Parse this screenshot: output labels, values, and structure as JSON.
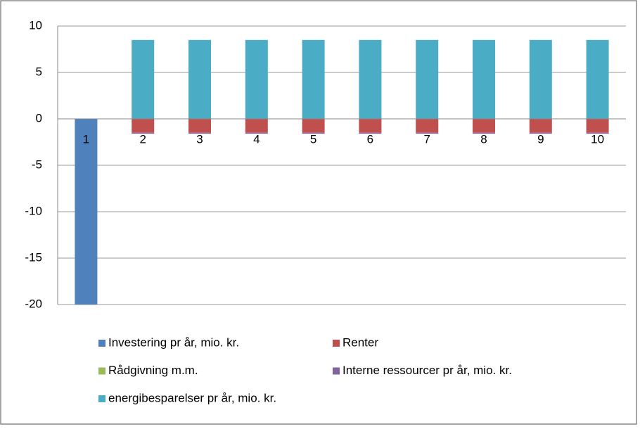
{
  "chart_data": {
    "type": "stacked_bar",
    "categories": [
      "1",
      "2",
      "3",
      "4",
      "5",
      "6",
      "7",
      "8",
      "9",
      "10"
    ],
    "series": [
      {
        "name": "Investering pr år, mio. kr.",
        "color": "#4f81bd",
        "values": [
          -20,
          0,
          0,
          0,
          0,
          0,
          0,
          0,
          0,
          0
        ]
      },
      {
        "name": "Renter",
        "color": "#c0504d",
        "values": [
          0,
          -1.5,
          -1.5,
          -1.5,
          -1.5,
          -1.5,
          -1.5,
          -1.5,
          -1.5,
          -1.5
        ]
      },
      {
        "name": "Rådgivning m.m.",
        "color": "#9bbb59",
        "values": [
          0,
          0,
          0,
          0,
          0,
          0,
          0,
          0,
          0,
          0
        ]
      },
      {
        "name": "Interne ressourcer pr år, mio. kr.",
        "color": "#8064a2",
        "values": [
          0,
          -0.1,
          -0.1,
          -0.1,
          -0.1,
          -0.1,
          -0.1,
          -0.1,
          -0.1,
          -0.1
        ]
      },
      {
        "name": "energibesparelser pr år, mio. kr.",
        "color": "#4bacc6",
        "values": [
          0,
          8.5,
          8.5,
          8.5,
          8.5,
          8.5,
          8.5,
          8.5,
          8.5,
          8.5
        ]
      }
    ],
    "ylim": [
      -20,
      10
    ],
    "yticks": [
      -20,
      -15,
      -10,
      -5,
      0,
      5,
      10
    ],
    "grid": true,
    "legend": "bottom"
  }
}
